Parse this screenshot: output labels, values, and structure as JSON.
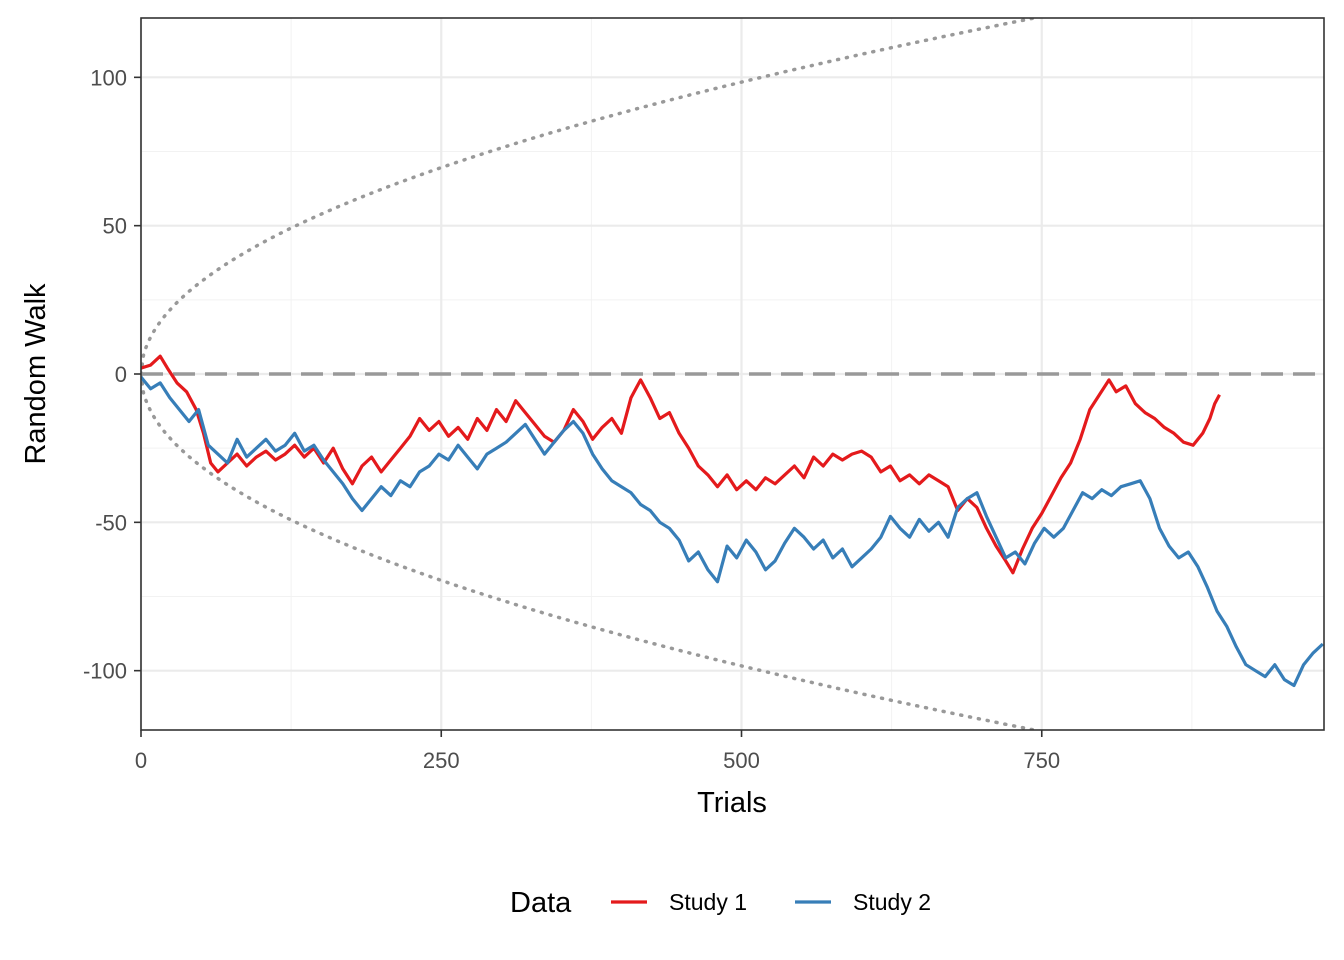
{
  "chart_data": {
    "type": "line",
    "title": "",
    "xlabel": "Trials",
    "ylabel": "Random Walk",
    "xlim": [
      0,
      985
    ],
    "ylim": [
      -120,
      120
    ],
    "x_ticks": [
      0,
      250,
      500,
      750
    ],
    "x_tick_labels": [
      "0",
      "250",
      "500",
      "750"
    ],
    "y_ticks": [
      100,
      50,
      0,
      -50,
      -100
    ],
    "y_tick_labels": [
      "100",
      "50",
      "0",
      "-50",
      "-100"
    ],
    "grid": true,
    "legend": {
      "title": "Data",
      "placement": "bottom"
    },
    "reference_lines": [
      {
        "type": "horizontal",
        "y": 0,
        "style": "dashed",
        "color": "#999999"
      },
      {
        "type": "boundary",
        "formula": "+/- 4.4*sqrt(trials)",
        "style": "dotted",
        "color": "#999999"
      }
    ],
    "series": [
      {
        "name": "Study 1",
        "color": "#E41A1C",
        "points": [
          [
            0,
            2
          ],
          [
            8,
            3
          ],
          [
            16,
            6
          ],
          [
            22,
            2
          ],
          [
            30,
            -3
          ],
          [
            38,
            -6
          ],
          [
            46,
            -12
          ],
          [
            52,
            -20
          ],
          [
            58,
            -30
          ],
          [
            64,
            -33
          ],
          [
            72,
            -30
          ],
          [
            80,
            -27
          ],
          [
            88,
            -31
          ],
          [
            96,
            -28
          ],
          [
            104,
            -26
          ],
          [
            112,
            -29
          ],
          [
            120,
            -27
          ],
          [
            128,
            -24
          ],
          [
            136,
            -28
          ],
          [
            144,
            -25
          ],
          [
            152,
            -30
          ],
          [
            160,
            -25
          ],
          [
            168,
            -32
          ],
          [
            176,
            -37
          ],
          [
            184,
            -31
          ],
          [
            192,
            -28
          ],
          [
            200,
            -33
          ],
          [
            208,
            -29
          ],
          [
            216,
            -25
          ],
          [
            224,
            -21
          ],
          [
            232,
            -15
          ],
          [
            240,
            -19
          ],
          [
            248,
            -16
          ],
          [
            256,
            -21
          ],
          [
            264,
            -18
          ],
          [
            272,
            -22
          ],
          [
            280,
            -15
          ],
          [
            288,
            -19
          ],
          [
            296,
            -12
          ],
          [
            304,
            -16
          ],
          [
            312,
            -9
          ],
          [
            320,
            -13
          ],
          [
            328,
            -17
          ],
          [
            336,
            -21
          ],
          [
            344,
            -23
          ],
          [
            352,
            -19
          ],
          [
            360,
            -12
          ],
          [
            368,
            -16
          ],
          [
            376,
            -22
          ],
          [
            384,
            -18
          ],
          [
            392,
            -15
          ],
          [
            400,
            -20
          ],
          [
            408,
            -8
          ],
          [
            416,
            -2
          ],
          [
            424,
            -8
          ],
          [
            432,
            -15
          ],
          [
            440,
            -13
          ],
          [
            448,
            -20
          ],
          [
            456,
            -25
          ],
          [
            464,
            -31
          ],
          [
            472,
            -34
          ],
          [
            480,
            -38
          ],
          [
            488,
            -34
          ],
          [
            496,
            -39
          ],
          [
            504,
            -36
          ],
          [
            512,
            -39
          ],
          [
            520,
            -35
          ],
          [
            528,
            -37
          ],
          [
            536,
            -34
          ],
          [
            544,
            -31
          ],
          [
            552,
            -35
          ],
          [
            560,
            -28
          ],
          [
            568,
            -31
          ],
          [
            576,
            -27
          ],
          [
            584,
            -29
          ],
          [
            592,
            -27
          ],
          [
            600,
            -26
          ],
          [
            608,
            -28
          ],
          [
            616,
            -33
          ],
          [
            624,
            -31
          ],
          [
            632,
            -36
          ],
          [
            640,
            -34
          ],
          [
            648,
            -37
          ],
          [
            656,
            -34
          ],
          [
            664,
            -36
          ],
          [
            672,
            -38
          ],
          [
            680,
            -46
          ],
          [
            688,
            -42
          ],
          [
            696,
            -45
          ],
          [
            704,
            -52
          ],
          [
            712,
            -58
          ],
          [
            720,
            -63
          ],
          [
            726,
            -67
          ],
          [
            734,
            -59
          ],
          [
            742,
            -52
          ],
          [
            750,
            -47
          ],
          [
            758,
            -41
          ],
          [
            766,
            -35
          ],
          [
            774,
            -30
          ],
          [
            782,
            -22
          ],
          [
            790,
            -12
          ],
          [
            798,
            -7
          ],
          [
            806,
            -2
          ],
          [
            812,
            -6
          ],
          [
            820,
            -4
          ],
          [
            828,
            -10
          ],
          [
            836,
            -13
          ],
          [
            844,
            -15
          ],
          [
            852,
            -18
          ],
          [
            860,
            -20
          ],
          [
            868,
            -23
          ],
          [
            876,
            -24
          ],
          [
            884,
            -20
          ],
          [
            890,
            -15
          ],
          [
            894,
            -10
          ],
          [
            898,
            -7
          ]
        ]
      },
      {
        "name": "Study 2",
        "color": "#377EB8",
        "points": [
          [
            0,
            -1
          ],
          [
            8,
            -5
          ],
          [
            16,
            -3
          ],
          [
            24,
            -8
          ],
          [
            32,
            -12
          ],
          [
            40,
            -16
          ],
          [
            48,
            -12
          ],
          [
            56,
            -24
          ],
          [
            64,
            -27
          ],
          [
            72,
            -30
          ],
          [
            80,
            -22
          ],
          [
            88,
            -28
          ],
          [
            96,
            -25
          ],
          [
            104,
            -22
          ],
          [
            112,
            -26
          ],
          [
            120,
            -24
          ],
          [
            128,
            -20
          ],
          [
            136,
            -26
          ],
          [
            144,
            -24
          ],
          [
            152,
            -29
          ],
          [
            160,
            -33
          ],
          [
            168,
            -37
          ],
          [
            176,
            -42
          ],
          [
            184,
            -46
          ],
          [
            192,
            -42
          ],
          [
            200,
            -38
          ],
          [
            208,
            -41
          ],
          [
            216,
            -36
          ],
          [
            224,
            -38
          ],
          [
            232,
            -33
          ],
          [
            240,
            -31
          ],
          [
            248,
            -27
          ],
          [
            256,
            -29
          ],
          [
            264,
            -24
          ],
          [
            272,
            -28
          ],
          [
            280,
            -32
          ],
          [
            288,
            -27
          ],
          [
            296,
            -25
          ],
          [
            304,
            -23
          ],
          [
            312,
            -20
          ],
          [
            320,
            -17
          ],
          [
            328,
            -22
          ],
          [
            336,
            -27
          ],
          [
            344,
            -23
          ],
          [
            352,
            -19
          ],
          [
            360,
            -16
          ],
          [
            368,
            -20
          ],
          [
            376,
            -27
          ],
          [
            384,
            -32
          ],
          [
            392,
            -36
          ],
          [
            400,
            -38
          ],
          [
            408,
            -40
          ],
          [
            416,
            -44
          ],
          [
            424,
            -46
          ],
          [
            432,
            -50
          ],
          [
            440,
            -52
          ],
          [
            448,
            -56
          ],
          [
            456,
            -63
          ],
          [
            464,
            -60
          ],
          [
            472,
            -66
          ],
          [
            480,
            -70
          ],
          [
            488,
            -58
          ],
          [
            496,
            -62
          ],
          [
            504,
            -56
          ],
          [
            512,
            -60
          ],
          [
            520,
            -66
          ],
          [
            528,
            -63
          ],
          [
            536,
            -57
          ],
          [
            544,
            -52
          ],
          [
            552,
            -55
          ],
          [
            560,
            -59
          ],
          [
            568,
            -56
          ],
          [
            576,
            -62
          ],
          [
            584,
            -59
          ],
          [
            592,
            -65
          ],
          [
            600,
            -62
          ],
          [
            608,
            -59
          ],
          [
            616,
            -55
          ],
          [
            624,
            -48
          ],
          [
            632,
            -52
          ],
          [
            640,
            -55
          ],
          [
            648,
            -49
          ],
          [
            656,
            -53
          ],
          [
            664,
            -50
          ],
          [
            672,
            -55
          ],
          [
            680,
            -45
          ],
          [
            688,
            -42
          ],
          [
            696,
            -40
          ],
          [
            704,
            -48
          ],
          [
            712,
            -55
          ],
          [
            720,
            -62
          ],
          [
            728,
            -60
          ],
          [
            736,
            -64
          ],
          [
            744,
            -57
          ],
          [
            752,
            -52
          ],
          [
            760,
            -55
          ],
          [
            768,
            -52
          ],
          [
            776,
            -46
          ],
          [
            784,
            -40
          ],
          [
            792,
            -42
          ],
          [
            800,
            -39
          ],
          [
            808,
            -41
          ],
          [
            816,
            -38
          ],
          [
            824,
            -37
          ],
          [
            832,
            -36
          ],
          [
            840,
            -42
          ],
          [
            848,
            -52
          ],
          [
            856,
            -58
          ],
          [
            864,
            -62
          ],
          [
            872,
            -60
          ],
          [
            880,
            -65
          ],
          [
            888,
            -72
          ],
          [
            896,
            -80
          ],
          [
            904,
            -85
          ],
          [
            912,
            -92
          ],
          [
            920,
            -98
          ],
          [
            928,
            -100
          ],
          [
            936,
            -102
          ],
          [
            944,
            -98
          ],
          [
            952,
            -103
          ],
          [
            960,
            -105
          ],
          [
            968,
            -98
          ],
          [
            976,
            -94
          ],
          [
            984,
            -91
          ]
        ]
      }
    ]
  }
}
